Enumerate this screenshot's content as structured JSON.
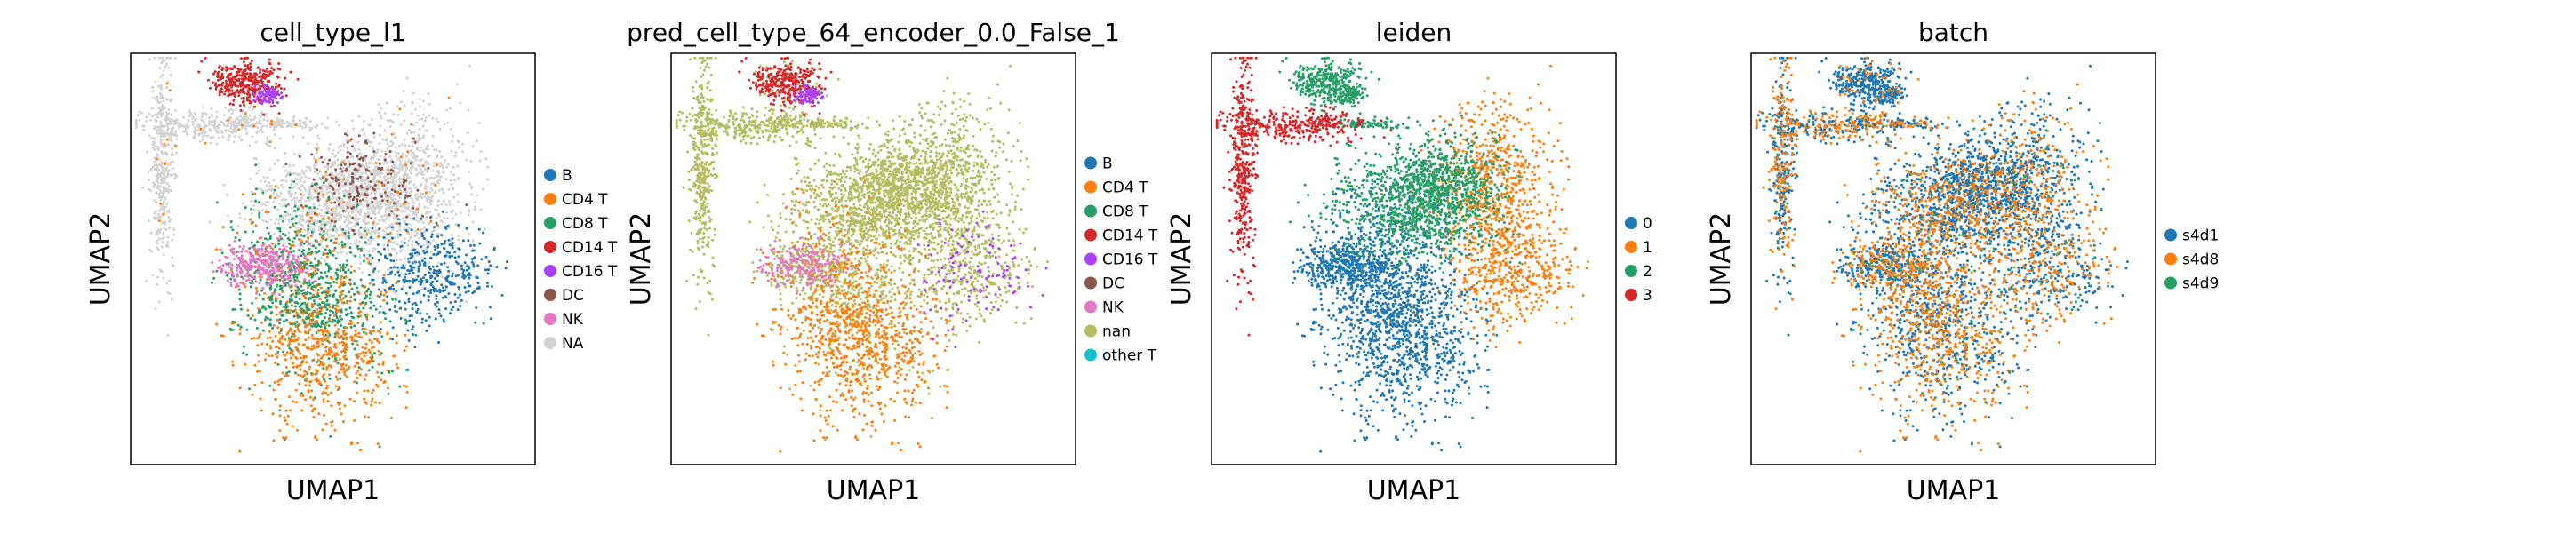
{
  "chart_data": [
    {
      "type": "scatter",
      "title": "cell_type_l1",
      "xlabel": "UMAP1",
      "ylabel": "UMAP2",
      "legend": [
        {
          "label": "B",
          "color": "#1f77b4"
        },
        {
          "label": "CD4 T",
          "color": "#ff7f0e"
        },
        {
          "label": "CD8 T",
          "color": "#279e68"
        },
        {
          "label": "CD14 T",
          "color": "#d62728"
        },
        {
          "label": "CD16 T",
          "color": "#aa40fc"
        },
        {
          "label": "DC",
          "color": "#8c564b"
        },
        {
          "label": "NK",
          "color": "#e377c2"
        },
        {
          "label": "NA",
          "color": "#d3d3d3"
        }
      ]
    },
    {
      "type": "scatter",
      "title": "pred_cell_type_64_encoder_0.0_False_1",
      "xlabel": "UMAP1",
      "ylabel": "UMAP2",
      "legend": [
        {
          "label": "B",
          "color": "#1f77b4"
        },
        {
          "label": "CD4 T",
          "color": "#ff7f0e"
        },
        {
          "label": "CD8 T",
          "color": "#279e68"
        },
        {
          "label": "CD14 T",
          "color": "#d62728"
        },
        {
          "label": "CD16 T",
          "color": "#aa40fc"
        },
        {
          "label": "DC",
          "color": "#8c564b"
        },
        {
          "label": "NK",
          "color": "#e377c2"
        },
        {
          "label": "nan",
          "color": "#b5bd61"
        },
        {
          "label": "other T",
          "color": "#17becf"
        }
      ]
    },
    {
      "type": "scatter",
      "title": "leiden",
      "xlabel": "UMAP1",
      "ylabel": "UMAP2",
      "legend": [
        {
          "label": "0",
          "color": "#1f77b4"
        },
        {
          "label": "1",
          "color": "#ff7f0e"
        },
        {
          "label": "2",
          "color": "#279e68"
        },
        {
          "label": "3",
          "color": "#d62728"
        }
      ]
    },
    {
      "type": "scatter",
      "title": "batch",
      "xlabel": "UMAP1",
      "ylabel": "UMAP2",
      "legend": [
        {
          "label": "s4d1",
          "color": "#1f77b4"
        },
        {
          "label": "s4d8",
          "color": "#ff7f0e"
        },
        {
          "label": "s4d9",
          "color": "#279e68"
        }
      ]
    }
  ]
}
